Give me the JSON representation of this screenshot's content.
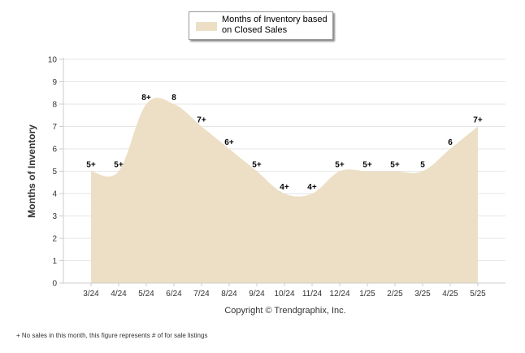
{
  "legend": {
    "label": "Months of Inventory based on Closed Sales"
  },
  "copyright": "Copyright © Trendgraphix, Inc.",
  "footnote": "+ No sales in this month, this figure represents # of for sale listings",
  "colors": {
    "area": "#ecdfc5",
    "grid": "#e6e6e6",
    "axis": "#cccccc"
  },
  "chart_data": {
    "type": "area",
    "ylabel": "Months of Inventory",
    "xlabel": "",
    "ylim": [
      0,
      10
    ],
    "yticks": [
      "0",
      "1",
      "2",
      "3",
      "4",
      "5",
      "6",
      "7",
      "8",
      "9",
      "10"
    ],
    "categories": [
      "3/24",
      "4/24",
      "5/24",
      "6/24",
      "7/24",
      "8/24",
      "9/24",
      "10/24",
      "11/24",
      "12/24",
      "1/25",
      "2/25",
      "3/25",
      "4/25",
      "5/25"
    ],
    "series": [
      {
        "values": [
          5,
          5,
          8,
          8,
          7,
          6,
          5,
          4,
          4,
          5,
          5,
          5,
          5,
          6,
          7
        ],
        "labels": [
          "5+",
          "5+",
          "8+",
          "8",
          "7+",
          "6+",
          "5+",
          "4+",
          "4+",
          "5+",
          "5+",
          "5+",
          "5",
          "6",
          "7+"
        ]
      }
    ],
    "grid": true,
    "legend_position": "top"
  }
}
